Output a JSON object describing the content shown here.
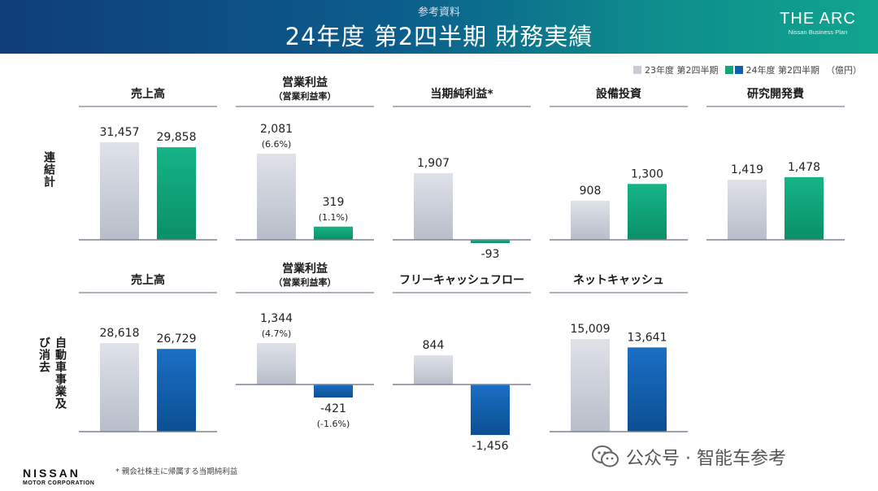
{
  "header": {
    "subtitle": "参考資料",
    "title": "24年度 第2四半期 財務実績",
    "logo_text": "THE ARC",
    "logo_sub": "Nissan Business Plan"
  },
  "legend": {
    "items": [
      {
        "label": "23年度 第2四半期",
        "color": "#c9ccd6"
      },
      {
        "label": "24年度 第2四半期",
        "color": "#11a57c"
      }
    ],
    "unit": "（億円）"
  },
  "colors": {
    "prev": "#c9ccd6",
    "consolidated": "#11a57c",
    "auto": "#0f5fb0"
  },
  "rows": {
    "consolidated_label": "連結計",
    "auto_label": "自動車事業及び消去"
  },
  "chart_data": [
    {
      "type": "bar",
      "row": "consolidated",
      "title": "売上高",
      "subtitle": "",
      "categories": [
        "23年度 第2四半期",
        "24年度 第2四半期"
      ],
      "values": [
        31457,
        29858
      ],
      "labels": [
        "31,457",
        "29,858"
      ],
      "sublabels": [
        "",
        ""
      ]
    },
    {
      "type": "bar",
      "row": "consolidated",
      "title": "営業利益",
      "subtitle": "（営業利益率）",
      "categories": [
        "23年度 第2四半期",
        "24年度 第2四半期"
      ],
      "values": [
        2081,
        319
      ],
      "labels": [
        "2,081",
        "319"
      ],
      "sublabels": [
        "(6.6%)",
        "(1.1%)"
      ]
    },
    {
      "type": "bar",
      "row": "consolidated",
      "title": "当期純利益*",
      "subtitle": "",
      "categories": [
        "23年度 第2四半期",
        "24年度 第2四半期"
      ],
      "values": [
        1907,
        -93
      ],
      "labels": [
        "1,907",
        "-93"
      ],
      "sublabels": [
        "",
        ""
      ]
    },
    {
      "type": "bar",
      "row": "consolidated",
      "title": "設備投資",
      "subtitle": "",
      "categories": [
        "23年度 第2四半期",
        "24年度 第2四半期"
      ],
      "values": [
        908,
        1300
      ],
      "labels": [
        "908",
        "1,300"
      ],
      "sublabels": [
        "",
        ""
      ]
    },
    {
      "type": "bar",
      "row": "consolidated",
      "title": "研究開発費",
      "subtitle": "",
      "categories": [
        "23年度 第2四半期",
        "24年度 第2四半期"
      ],
      "values": [
        1419,
        1478
      ],
      "labels": [
        "1,419",
        "1,478"
      ],
      "sublabels": [
        "",
        ""
      ]
    },
    {
      "type": "bar",
      "row": "auto",
      "title": "売上高",
      "subtitle": "",
      "categories": [
        "23年度 第2四半期",
        "24年度 第2四半期"
      ],
      "values": [
        28618,
        26729
      ],
      "labels": [
        "28,618",
        "26,729"
      ],
      "sublabels": [
        "",
        ""
      ]
    },
    {
      "type": "bar",
      "row": "auto",
      "title": "営業利益",
      "subtitle": "（営業利益率）",
      "categories": [
        "23年度 第2四半期",
        "24年度 第2四半期"
      ],
      "values": [
        1344,
        -421
      ],
      "labels": [
        "1,344",
        "-421"
      ],
      "sublabels": [
        "(4.7%)",
        "(-1.6%)"
      ]
    },
    {
      "type": "bar",
      "row": "auto",
      "title": "フリーキャッシュフロー",
      "subtitle": "",
      "categories": [
        "23年度 第2四半期",
        "24年度 第2四半期"
      ],
      "values": [
        844,
        -1456
      ],
      "labels": [
        "844",
        "-1,456"
      ],
      "sublabels": [
        "",
        ""
      ]
    },
    {
      "type": "bar",
      "row": "auto",
      "title": "ネットキャッシュ",
      "subtitle": "",
      "categories": [
        "23年度 第2四半期",
        "24年度 第2四半期"
      ],
      "values": [
        15009,
        13641
      ],
      "labels": [
        "15,009",
        "13,641"
      ],
      "sublabels": [
        "",
        ""
      ]
    }
  ],
  "footnote": "* 親会社株主に帰属する当期純利益",
  "brand": {
    "name": "NISSAN",
    "corp": "MOTOR CORPORATION"
  },
  "watermark": "公众号 · 智能车参考"
}
